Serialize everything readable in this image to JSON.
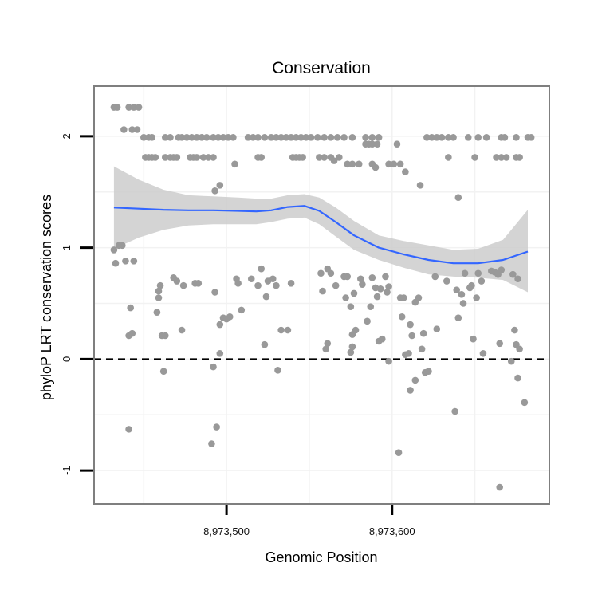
{
  "chart_data": {
    "type": "scatter",
    "title": "Conservation",
    "xlabel": "Genomic Position",
    "ylabel": "phyloP LRT conservation scores",
    "xlim": [
      8973420,
      8973695
    ],
    "ylim": [
      -1.3,
      2.45
    ],
    "x_ticks": [
      {
        "value": 8973500,
        "label": "8,973,500"
      },
      {
        "value": 8973600,
        "label": "8,973,600"
      }
    ],
    "y_ticks": [
      {
        "value": -1,
        "label": "-1"
      },
      {
        "value": 0,
        "label": "0"
      },
      {
        "value": 1,
        "label": "1"
      },
      {
        "value": 2,
        "label": "2"
      }
    ],
    "grid": true,
    "reference_line": {
      "y": 0,
      "style": "dashed"
    },
    "colors": {
      "points": "#999999",
      "smooth_line": "#3366FF",
      "confidence_band": "#cccccc",
      "panel_border": "#7f7f7f",
      "grid": "#f2f2f2"
    },
    "points": [
      {
        "x": 8973432,
        "y": 2.26
      },
      {
        "x": 8973434,
        "y": 2.26
      },
      {
        "x": 8973441,
        "y": 2.26
      },
      {
        "x": 8973444,
        "y": 2.26
      },
      {
        "x": 8973447,
        "y": 2.26
      },
      {
        "x": 8973438,
        "y": 2.06
      },
      {
        "x": 8973443,
        "y": 2.06
      },
      {
        "x": 8973446,
        "y": 2.06
      },
      {
        "x": 8973450,
        "y": 1.99
      },
      {
        "x": 8973453,
        "y": 1.99
      },
      {
        "x": 8973455,
        "y": 1.99
      },
      {
        "x": 8973463,
        "y": 1.99
      },
      {
        "x": 8973466,
        "y": 1.99
      },
      {
        "x": 8973471,
        "y": 1.99
      },
      {
        "x": 8973473,
        "y": 1.99
      },
      {
        "x": 8973476,
        "y": 1.99
      },
      {
        "x": 8973479,
        "y": 1.99
      },
      {
        "x": 8973482,
        "y": 1.99
      },
      {
        "x": 8973485,
        "y": 1.99
      },
      {
        "x": 8973488,
        "y": 1.99
      },
      {
        "x": 8973492,
        "y": 1.99
      },
      {
        "x": 8973495,
        "y": 1.99
      },
      {
        "x": 8973498,
        "y": 1.99
      },
      {
        "x": 8973501,
        "y": 1.99
      },
      {
        "x": 8973504,
        "y": 1.99
      },
      {
        "x": 8973513,
        "y": 1.99
      },
      {
        "x": 8973516,
        "y": 1.99
      },
      {
        "x": 8973519,
        "y": 1.99
      },
      {
        "x": 8973523,
        "y": 1.99
      },
      {
        "x": 8973527,
        "y": 1.99
      },
      {
        "x": 8973530,
        "y": 1.99
      },
      {
        "x": 8973533,
        "y": 1.99
      },
      {
        "x": 8973536,
        "y": 1.99
      },
      {
        "x": 8973539,
        "y": 1.99
      },
      {
        "x": 8973542,
        "y": 1.99
      },
      {
        "x": 8973545,
        "y": 1.99
      },
      {
        "x": 8973548,
        "y": 1.99
      },
      {
        "x": 8973551,
        "y": 1.99
      },
      {
        "x": 8973555,
        "y": 1.99
      },
      {
        "x": 8973559,
        "y": 1.99
      },
      {
        "x": 8973563,
        "y": 1.99
      },
      {
        "x": 8973567,
        "y": 1.99
      },
      {
        "x": 8973571,
        "y": 1.99
      },
      {
        "x": 8973576,
        "y": 1.99
      },
      {
        "x": 8973584,
        "y": 1.99
      },
      {
        "x": 8973588,
        "y": 1.99
      },
      {
        "x": 8973592,
        "y": 1.99
      },
      {
        "x": 8973621,
        "y": 1.99
      },
      {
        "x": 8973624,
        "y": 1.99
      },
      {
        "x": 8973627,
        "y": 1.99
      },
      {
        "x": 8973630,
        "y": 1.99
      },
      {
        "x": 8973634,
        "y": 1.99
      },
      {
        "x": 8973637,
        "y": 1.99
      },
      {
        "x": 8973646,
        "y": 1.99
      },
      {
        "x": 8973652,
        "y": 1.99
      },
      {
        "x": 8973657,
        "y": 1.99
      },
      {
        "x": 8973666,
        "y": 1.99
      },
      {
        "x": 8973668,
        "y": 1.99
      },
      {
        "x": 8973675,
        "y": 1.99
      },
      {
        "x": 8973682,
        "y": 1.99
      },
      {
        "x": 8973684,
        "y": 1.99
      },
      {
        "x": 8973451,
        "y": 1.81
      },
      {
        "x": 8973453,
        "y": 1.81
      },
      {
        "x": 8973455,
        "y": 1.81
      },
      {
        "x": 8973457,
        "y": 1.81
      },
      {
        "x": 8973463,
        "y": 1.81
      },
      {
        "x": 8973466,
        "y": 1.81
      },
      {
        "x": 8973468,
        "y": 1.81
      },
      {
        "x": 8973470,
        "y": 1.81
      },
      {
        "x": 8973478,
        "y": 1.81
      },
      {
        "x": 8973480,
        "y": 1.81
      },
      {
        "x": 8973482,
        "y": 1.81
      },
      {
        "x": 8973486,
        "y": 1.81
      },
      {
        "x": 8973489,
        "y": 1.81
      },
      {
        "x": 8973492,
        "y": 1.81
      },
      {
        "x": 8973519,
        "y": 1.81
      },
      {
        "x": 8973521,
        "y": 1.81
      },
      {
        "x": 8973540,
        "y": 1.81
      },
      {
        "x": 8973542,
        "y": 1.81
      },
      {
        "x": 8973544,
        "y": 1.81
      },
      {
        "x": 8973546,
        "y": 1.81
      },
      {
        "x": 8973556,
        "y": 1.81
      },
      {
        "x": 8973559,
        "y": 1.81
      },
      {
        "x": 8973563,
        "y": 1.81
      },
      {
        "x": 8973568,
        "y": 1.81
      },
      {
        "x": 8973634,
        "y": 1.81
      },
      {
        "x": 8973650,
        "y": 1.81
      },
      {
        "x": 8973663,
        "y": 1.81
      },
      {
        "x": 8973666,
        "y": 1.81
      },
      {
        "x": 8973669,
        "y": 1.81
      },
      {
        "x": 8973675,
        "y": 1.81
      },
      {
        "x": 8973677,
        "y": 1.81
      },
      {
        "x": 8973565,
        "y": 1.78
      },
      {
        "x": 8973573,
        "y": 1.75
      },
      {
        "x": 8973576,
        "y": 1.75
      },
      {
        "x": 8973580,
        "y": 1.75
      },
      {
        "x": 8973505,
        "y": 1.75
      },
      {
        "x": 8973584,
        "y": 1.93
      },
      {
        "x": 8973586,
        "y": 1.93
      },
      {
        "x": 8973588,
        "y": 1.75
      },
      {
        "x": 8973590,
        "y": 1.72
      },
      {
        "x": 8973598,
        "y": 1.75
      },
      {
        "x": 8973601,
        "y": 1.75
      },
      {
        "x": 8973605,
        "y": 1.75
      },
      {
        "x": 8973608,
        "y": 1.68
      },
      {
        "x": 8973617,
        "y": 1.56
      },
      {
        "x": 8973640,
        "y": 1.45
      },
      {
        "x": 8973496,
        "y": 1.56
      },
      {
        "x": 8973493,
        "y": 1.51
      },
      {
        "x": 8973588,
        "y": 1.93
      },
      {
        "x": 8973603,
        "y": 1.93
      },
      {
        "x": 8973591,
        "y": 1.93
      },
      {
        "x": 8973432,
        "y": 0.98
      },
      {
        "x": 8973433,
        "y": 0.86
      },
      {
        "x": 8973435,
        "y": 1.02
      },
      {
        "x": 8973437,
        "y": 1.02
      },
      {
        "x": 8973439,
        "y": 0.88
      },
      {
        "x": 8973444,
        "y": 0.88
      },
      {
        "x": 8973442,
        "y": 0.46
      },
      {
        "x": 8973441,
        "y": 0.21
      },
      {
        "x": 8973443,
        "y": 0.23
      },
      {
        "x": 8973441,
        "y": -0.63
      },
      {
        "x": 8973459,
        "y": 0.61
      },
      {
        "x": 8973460,
        "y": 0.66
      },
      {
        "x": 8973459,
        "y": 0.55
      },
      {
        "x": 8973458,
        "y": 0.42
      },
      {
        "x": 8973461,
        "y": 0.21
      },
      {
        "x": 8973463,
        "y": 0.21
      },
      {
        "x": 8973462,
        "y": -0.11
      },
      {
        "x": 8973468,
        "y": 0.73
      },
      {
        "x": 8973470,
        "y": 0.7
      },
      {
        "x": 8973474,
        "y": 0.66
      },
      {
        "x": 8973473,
        "y": 0.26
      },
      {
        "x": 8973481,
        "y": 0.68
      },
      {
        "x": 8973483,
        "y": 0.68
      },
      {
        "x": 8973493,
        "y": 0.6
      },
      {
        "x": 8973496,
        "y": 0.31
      },
      {
        "x": 8973498,
        "y": 0.37
      },
      {
        "x": 8973500,
        "y": 0.36
      },
      {
        "x": 8973502,
        "y": 0.38
      },
      {
        "x": 8973492,
        "y": -0.07
      },
      {
        "x": 8973496,
        "y": 0.05
      },
      {
        "x": 8973491,
        "y": -0.76
      },
      {
        "x": 8973494,
        "y": -0.61
      },
      {
        "x": 8973506,
        "y": 0.72
      },
      {
        "x": 8973507,
        "y": 0.68
      },
      {
        "x": 8973509,
        "y": 0.44
      },
      {
        "x": 8973515,
        "y": 0.72
      },
      {
        "x": 8973519,
        "y": 0.66
      },
      {
        "x": 8973521,
        "y": 0.81
      },
      {
        "x": 8973525,
        "y": 0.7
      },
      {
        "x": 8973523,
        "y": 0.13
      },
      {
        "x": 8973524,
        "y": 0.56
      },
      {
        "x": 8973528,
        "y": 0.72
      },
      {
        "x": 8973530,
        "y": 0.66
      },
      {
        "x": 8973531,
        "y": -0.1
      },
      {
        "x": 8973533,
        "y": 0.26
      },
      {
        "x": 8973537,
        "y": 0.26
      },
      {
        "x": 8973539,
        "y": 0.68
      },
      {
        "x": 8973557,
        "y": 0.77
      },
      {
        "x": 8973561,
        "y": 0.81
      },
      {
        "x": 8973563,
        "y": 0.77
      },
      {
        "x": 8973558,
        "y": 0.61
      },
      {
        "x": 8973560,
        "y": 0.09
      },
      {
        "x": 8973561,
        "y": 0.14
      },
      {
        "x": 8973566,
        "y": 0.66
      },
      {
        "x": 8973571,
        "y": 0.74
      },
      {
        "x": 8973573,
        "y": 0.74
      },
      {
        "x": 8973572,
        "y": 0.55
      },
      {
        "x": 8973575,
        "y": 0.47
      },
      {
        "x": 8973577,
        "y": 0.59
      },
      {
        "x": 8973576,
        "y": 0.22
      },
      {
        "x": 8973578,
        "y": 0.26
      },
      {
        "x": 8973575,
        "y": 0.06
      },
      {
        "x": 8973576,
        "y": 0.11
      },
      {
        "x": 8973581,
        "y": 0.72
      },
      {
        "x": 8973582,
        "y": 0.67
      },
      {
        "x": 8973585,
        "y": 0.34
      },
      {
        "x": 8973587,
        "y": 0.47
      },
      {
        "x": 8973588,
        "y": 0.73
      },
      {
        "x": 8973590,
        "y": 0.64
      },
      {
        "x": 8973593,
        "y": 0.63
      },
      {
        "x": 8973591,
        "y": 0.56
      },
      {
        "x": 8973592,
        "y": 0.16
      },
      {
        "x": 8973594,
        "y": 0.18
      },
      {
        "x": 8973596,
        "y": 0.74
      },
      {
        "x": 8973598,
        "y": 0.65
      },
      {
        "x": 8973597,
        "y": 0.6
      },
      {
        "x": 8973598,
        "y": -0.02
      },
      {
        "x": 8973604,
        "y": -0.84
      },
      {
        "x": 8973605,
        "y": 0.55
      },
      {
        "x": 8973607,
        "y": 0.55
      },
      {
        "x": 8973606,
        "y": 0.38
      },
      {
        "x": 8973608,
        "y": 0.04
      },
      {
        "x": 8973610,
        "y": 0.05
      },
      {
        "x": 8973611,
        "y": 0.31
      },
      {
        "x": 8973612,
        "y": 0.21
      },
      {
        "x": 8973611,
        "y": -0.28
      },
      {
        "x": 8973614,
        "y": -0.19
      },
      {
        "x": 8973614,
        "y": 0.51
      },
      {
        "x": 8973616,
        "y": 0.55
      },
      {
        "x": 8973618,
        "y": 0.09
      },
      {
        "x": 8973619,
        "y": 0.23
      },
      {
        "x": 8973620,
        "y": -0.12
      },
      {
        "x": 8973622,
        "y": -0.11
      },
      {
        "x": 8973626,
        "y": 0.74
      },
      {
        "x": 8973627,
        "y": 0.27
      },
      {
        "x": 8973633,
        "y": 0.7
      },
      {
        "x": 8973639,
        "y": 0.62
      },
      {
        "x": 8973640,
        "y": 0.37
      },
      {
        "x": 8973642,
        "y": 0.58
      },
      {
        "x": 8973644,
        "y": 0.77
      },
      {
        "x": 8973647,
        "y": 0.64
      },
      {
        "x": 8973648,
        "y": 0.66
      },
      {
        "x": 8973638,
        "y": -0.47
      },
      {
        "x": 8973643,
        "y": 0.5
      },
      {
        "x": 8973649,
        "y": 0.18
      },
      {
        "x": 8973652,
        "y": 0.77
      },
      {
        "x": 8973654,
        "y": 0.7
      },
      {
        "x": 8973651,
        "y": 0.55
      },
      {
        "x": 8973655,
        "y": 0.05
      },
      {
        "x": 8973660,
        "y": 0.79
      },
      {
        "x": 8973662,
        "y": 0.78
      },
      {
        "x": 8973664,
        "y": 0.76
      },
      {
        "x": 8973666,
        "y": 0.8
      },
      {
        "x": 8973665,
        "y": 0.14
      },
      {
        "x": 8973665,
        "y": -1.15
      },
      {
        "x": 8973673,
        "y": 0.76
      },
      {
        "x": 8973676,
        "y": 0.72
      },
      {
        "x": 8973672,
        "y": -0.02
      },
      {
        "x": 8973674,
        "y": 0.26
      },
      {
        "x": 8973675,
        "y": 0.13
      },
      {
        "x": 8973677,
        "y": 0.09
      },
      {
        "x": 8973676,
        "y": -0.17
      },
      {
        "x": 8973680,
        "y": -0.39
      }
    ],
    "smooth_line": {
      "x": [
        8973432,
        8973447,
        8973462,
        8973477,
        8973492,
        8973507,
        8973518,
        8973527,
        8973537,
        8973547,
        8973556,
        8973566,
        8973577,
        8973592,
        8973607,
        8973622,
        8973637,
        8973652,
        8973667,
        8973682
      ],
      "y": [
        1.36,
        1.35,
        1.34,
        1.335,
        1.335,
        1.33,
        1.325,
        1.335,
        1.365,
        1.375,
        1.33,
        1.23,
        1.11,
        1.0,
        0.94,
        0.89,
        0.86,
        0.86,
        0.89,
        0.965
      ]
    },
    "confidence_band": {
      "x": [
        8973432,
        8973447,
        8973462,
        8973477,
        8973492,
        8973507,
        8973518,
        8973527,
        8973537,
        8973547,
        8973556,
        8973566,
        8973577,
        8973592,
        8973607,
        8973622,
        8973637,
        8973652,
        8973667,
        8973682
      ],
      "upper": [
        1.73,
        1.61,
        1.52,
        1.47,
        1.46,
        1.45,
        1.44,
        1.44,
        1.47,
        1.48,
        1.45,
        1.36,
        1.24,
        1.11,
        1.06,
        1.02,
        0.98,
        0.99,
        1.07,
        1.34
      ],
      "lower": [
        0.99,
        1.09,
        1.16,
        1.2,
        1.21,
        1.21,
        1.21,
        1.23,
        1.26,
        1.27,
        1.21,
        1.1,
        0.98,
        0.89,
        0.82,
        0.76,
        0.74,
        0.73,
        0.71,
        0.6
      ]
    }
  }
}
